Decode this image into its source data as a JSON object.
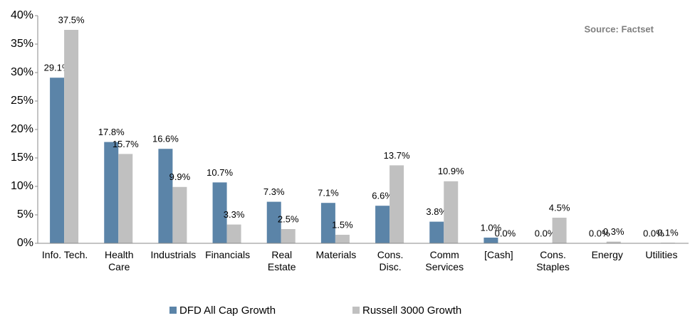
{
  "chart_data": {
    "type": "bar",
    "annotation": "Source: Factset",
    "categories": [
      "Info. Tech.",
      "Health\nCare",
      "Industrials",
      "Financials",
      "Real\nEstate",
      "Materials",
      "Cons.\nDisc.",
      "Comm\nServices",
      "[Cash]",
      "Cons.\nStaples",
      "Energy",
      "Utilities"
    ],
    "series": [
      {
        "name": "DFD All Cap Growth",
        "color": "#5b84a8",
        "values": [
          29.1,
          17.8,
          16.6,
          10.7,
          7.3,
          7.1,
          6.6,
          3.8,
          1.0,
          0.0,
          0.0,
          0.0
        ],
        "value_labels": [
          "29.1%",
          "17.8%",
          "16.6%",
          "10.7%",
          "7.3%",
          "7.1%",
          "6.6%",
          "3.8%",
          "1.0%",
          "0.0%",
          "0.0%",
          "0.0%"
        ]
      },
      {
        "name": "Russell 3000 Growth",
        "color": "#c0c0c0",
        "values": [
          37.5,
          15.7,
          9.9,
          3.3,
          2.5,
          1.5,
          13.7,
          10.9,
          0.0,
          4.5,
          0.3,
          0.1
        ],
        "value_labels": [
          "37.5%",
          "15.7%",
          "9.9%",
          "3.3%",
          "2.5%",
          "1.5%",
          "13.7%",
          "10.9%",
          "0.0%",
          "4.5%",
          "0.3%",
          "0.1%"
        ]
      }
    ],
    "ylim": [
      0,
      40
    ],
    "yticks": [
      {
        "value": 0,
        "label": "0%"
      },
      {
        "value": 5,
        "label": "5%"
      },
      {
        "value": 10,
        "label": "10%"
      },
      {
        "value": 15,
        "label": "15%"
      },
      {
        "value": 20,
        "label": "20%"
      },
      {
        "value": 25,
        "label": "25%"
      },
      {
        "value": 30,
        "label": "30%"
      },
      {
        "value": 35,
        "label": "35%"
      },
      {
        "value": 40,
        "label": "40%"
      }
    ],
    "legend": "bottom"
  }
}
